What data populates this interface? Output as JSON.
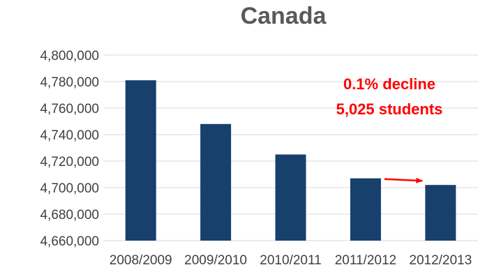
{
  "chart_data": {
    "type": "bar",
    "title": "Canada",
    "xlabel": "",
    "ylabel": "",
    "categories": [
      "2008/2009",
      "2009/2010",
      "2010/2011",
      "2011/2012",
      "2012/2013"
    ],
    "values": [
      4781000,
      4748000,
      4725000,
      4707000,
      4702000
    ],
    "ylim": [
      4660000,
      4800000
    ],
    "yticks": [
      4660000,
      4680000,
      4700000,
      4720000,
      4740000,
      4760000,
      4780000,
      4800000
    ],
    "ytick_labels": [
      "4,660,000",
      "4,680,000",
      "4,700,000",
      "4,720,000",
      "4,740,000",
      "4,760,000",
      "4,780,000",
      "4,800,000"
    ],
    "grid": true,
    "legend": "none",
    "colors": {
      "bar": "#17406d",
      "grid": "#d9d9d9",
      "annotation": "#ff0000"
    },
    "annotations": [
      {
        "line1": "0.1% decline",
        "line2": "5,025 students"
      }
    ],
    "arrow": {
      "from_category": "2011/2012",
      "to_category": "2012/2013"
    }
  }
}
